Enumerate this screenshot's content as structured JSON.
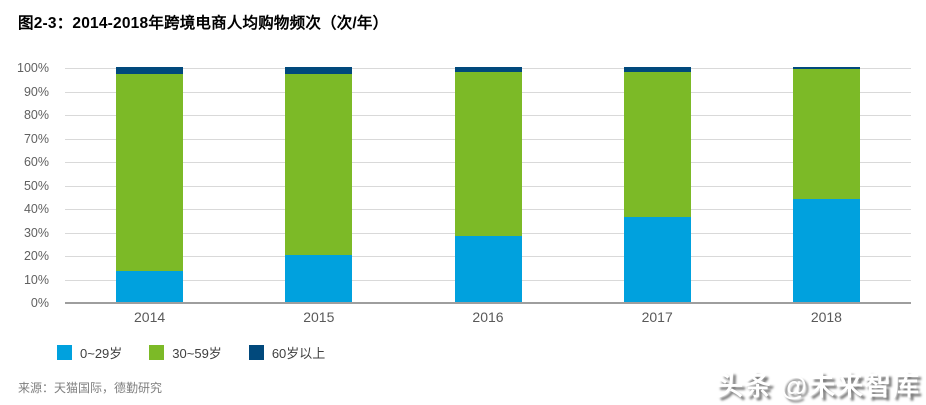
{
  "title": "图2-3：2014-2018年跨境电商人均购物频次（次/年）",
  "source_note": "来源：天猫国际，德勤研究",
  "watermark": "头条 @未来智库",
  "chart_data": {
    "type": "bar",
    "subtype": "stacked-100-percent",
    "title": "图2-3：2014-2018年跨境电商人均购物频次（次/年）",
    "categories": [
      "2014",
      "2015",
      "2016",
      "2017",
      "2018"
    ],
    "series": [
      {
        "name": "0~29岁",
        "color": "#00a1de",
        "values": [
          13,
          20,
          28,
          36,
          44
        ]
      },
      {
        "name": "30~59岁",
        "color": "#7cba27",
        "values": [
          84,
          77,
          70,
          62,
          55
        ]
      },
      {
        "name": "60岁以上",
        "color": "#01497c",
        "values": [
          3,
          3,
          2,
          2,
          1
        ]
      }
    ],
    "yticks": [
      "0%",
      "10%",
      "20%",
      "30%",
      "40%",
      "50%",
      "60%",
      "70%",
      "80%",
      "90%",
      "100%"
    ],
    "ylim": [
      0,
      100
    ],
    "xlabel": "",
    "ylabel": "",
    "grid": true,
    "legend_position": "bottom",
    "gridline_color": "#d9d9d9",
    "axis_line_color": "#9e9e9e"
  }
}
